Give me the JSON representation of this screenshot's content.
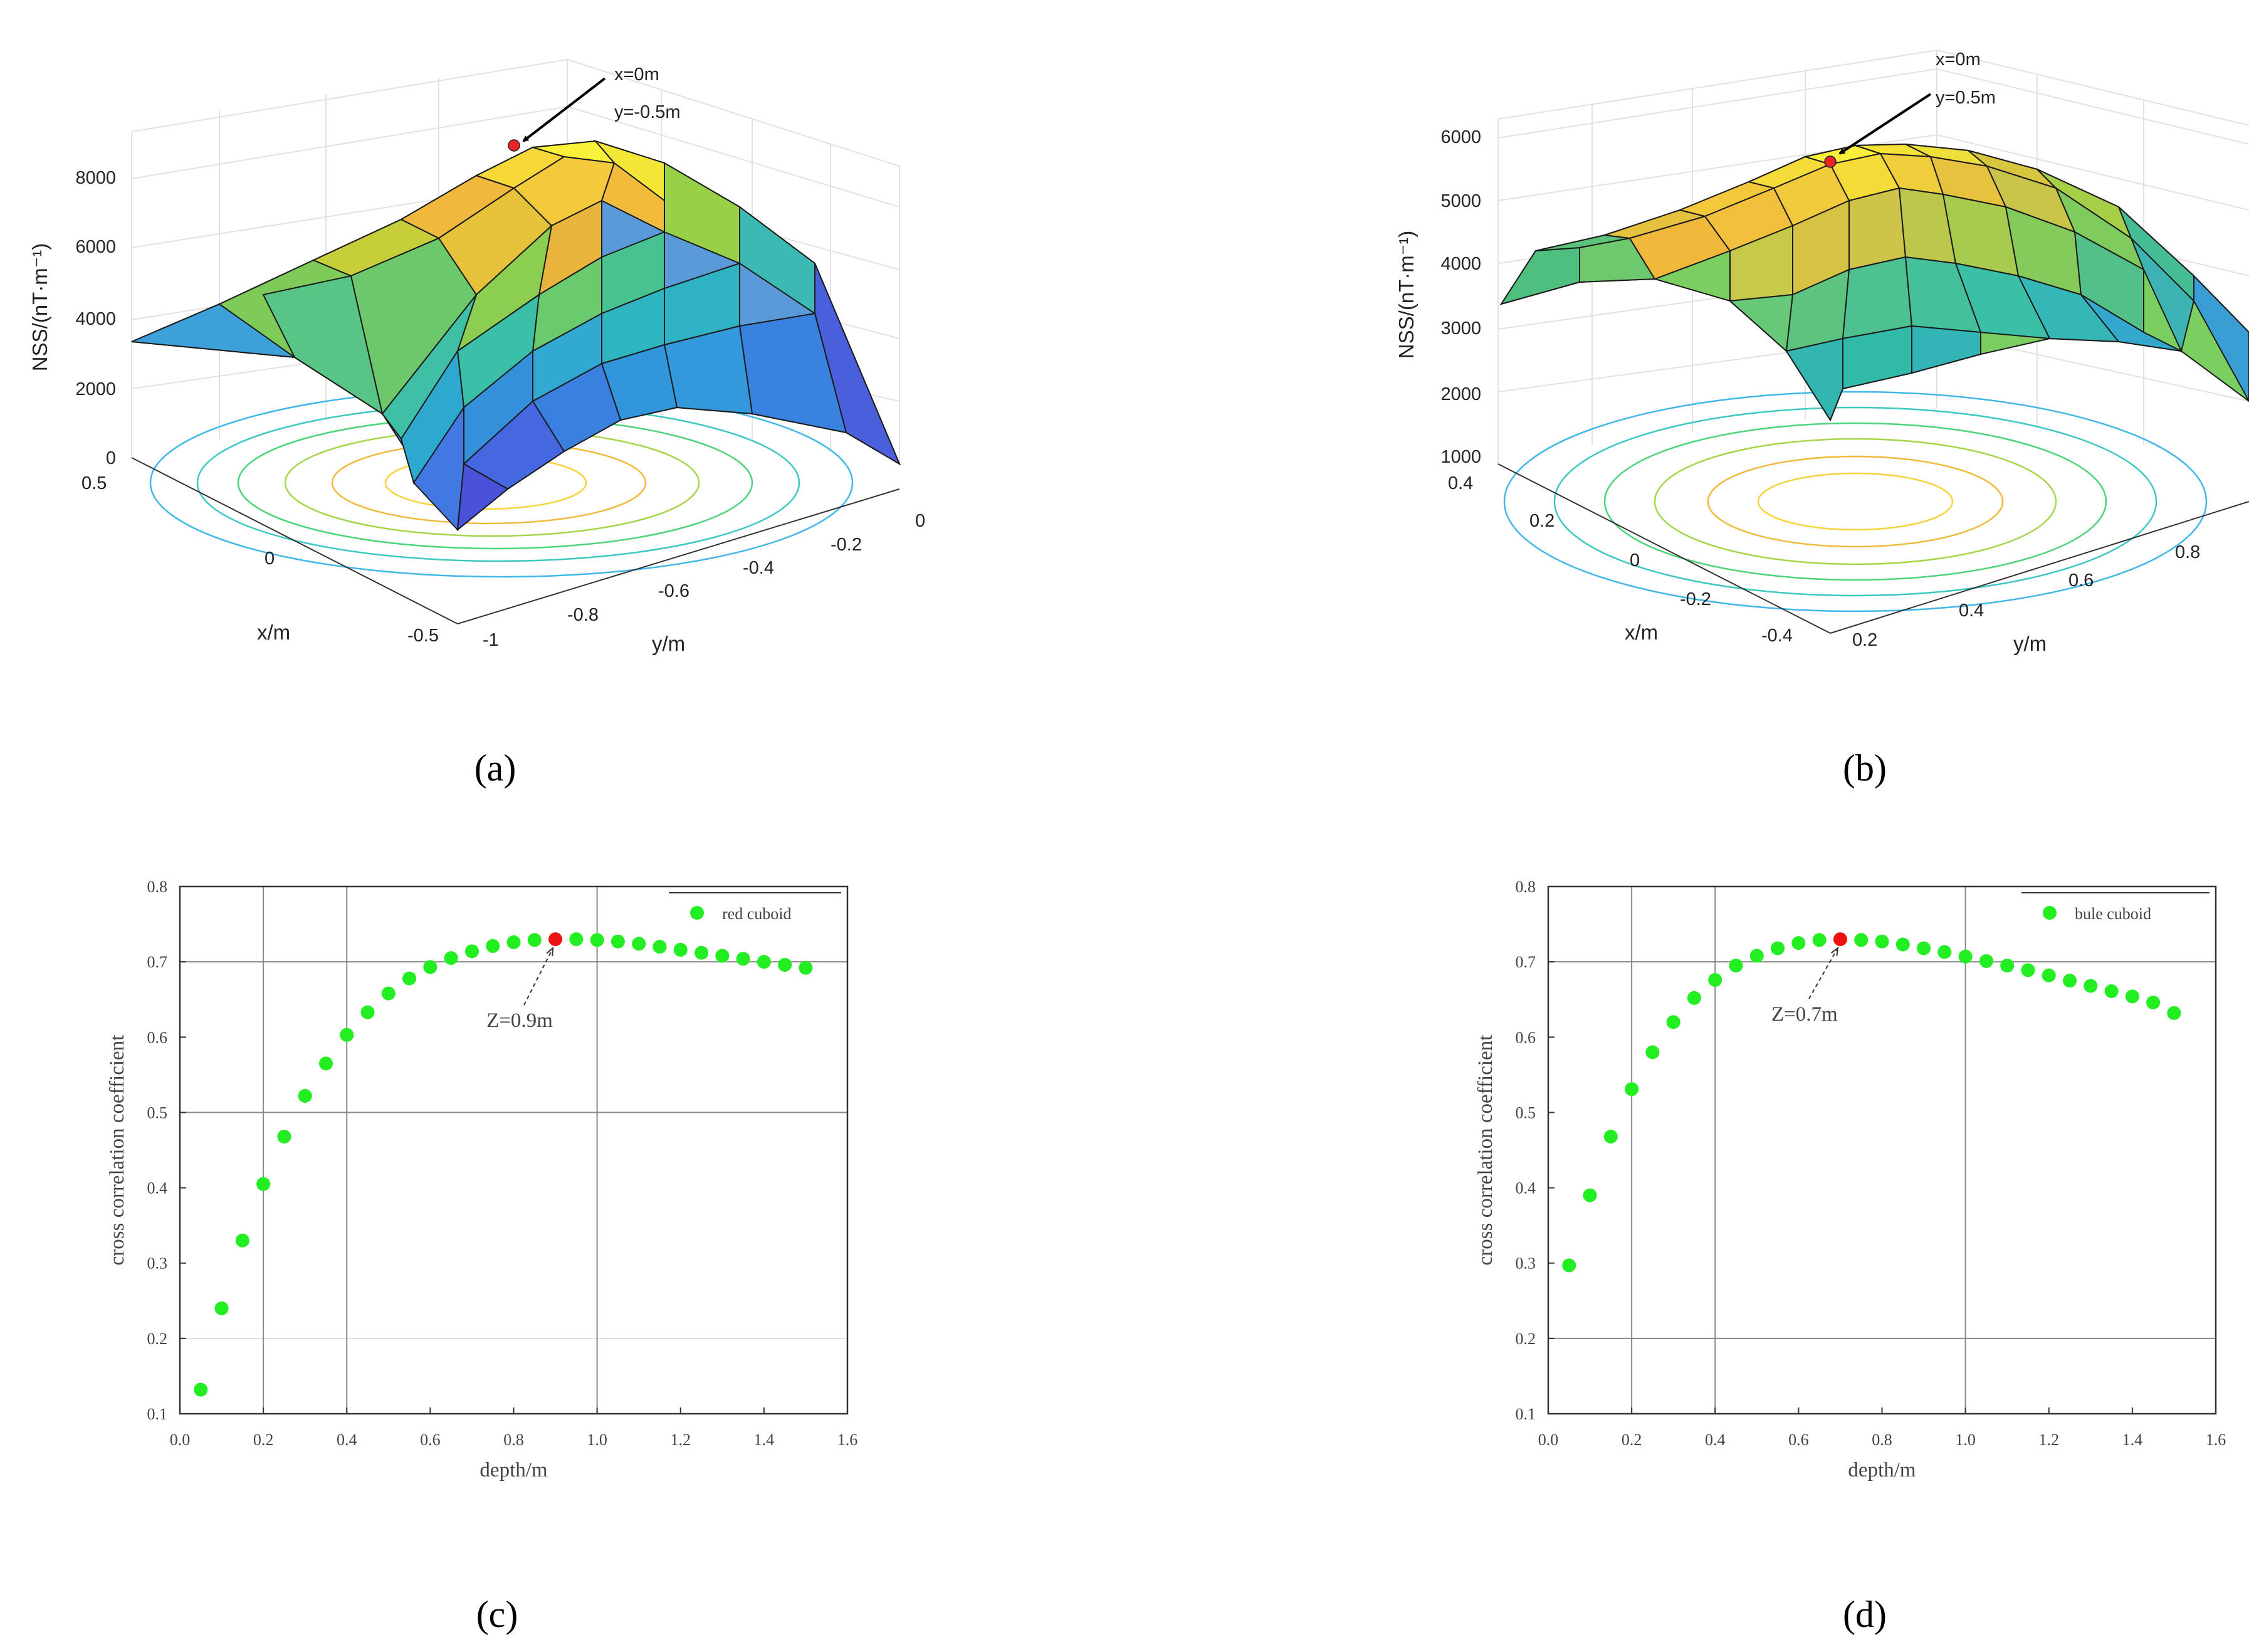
{
  "figure": {
    "panel_labels": {
      "a": "(a)",
      "b": "(b)",
      "c": "(c)",
      "d": "(d)"
    }
  },
  "chart_data": [
    {
      "id": "a",
      "type": "surface3d",
      "zlabel": "NSS/(nT·m⁻¹)",
      "xlabel": "x/m",
      "ylabel": "y/m",
      "ztick_labels": [
        "0",
        "2000",
        "4000",
        "6000",
        "8000"
      ],
      "xtick_labels": [
        "0.5",
        "0",
        "-0.5"
      ],
      "ytick_labels": [
        "-1",
        "-0.8",
        "-0.6",
        "-0.4",
        "-0.2",
        "0"
      ],
      "xlim": [
        -0.5,
        0.5
      ],
      "ylim": [
        -1,
        0
      ],
      "zlim": [
        0,
        9000
      ],
      "peak": {
        "x": 0,
        "y": -0.5,
        "z": 8800
      },
      "annotation": [
        "x=0m",
        "y=-0.5m"
      ],
      "colormap": "parula"
    },
    {
      "id": "b",
      "type": "surface3d",
      "zlabel": "NSS/(nT·m⁻¹)",
      "xlabel": "x/m",
      "ylabel": "y/m",
      "ztick_labels": [
        "1000",
        "2000",
        "3000",
        "4000",
        "5000",
        "6000"
      ],
      "xtick_labels": [
        "0.4",
        "0.2",
        "0",
        "-0.2",
        "-0.4"
      ],
      "ytick_labels": [
        "0.2",
        "0.4",
        "0.6",
        "0.8"
      ],
      "xlim": [
        -0.4,
        0.4
      ],
      "ylim": [
        0.2,
        0.9
      ],
      "zlim": [
        1000,
        6000
      ],
      "peak": {
        "x": 0,
        "y": 0.5,
        "z": 5700
      },
      "annotation": [
        "x=0m",
        "y=0.5m"
      ],
      "colormap": "parula"
    },
    {
      "id": "c",
      "type": "scatter",
      "xlabel": "depth/m",
      "ylabel": "cross correlation coefficient",
      "xlim": [
        0,
        1.6
      ],
      "ylim": [
        0.1,
        0.8
      ],
      "xtick_labels": [
        "0.0",
        "0.2",
        "0.4",
        "0.6",
        "0.8",
        "1.0",
        "1.2",
        "1.4",
        "1.6"
      ],
      "ytick_labels": [
        "0.1",
        "0.2",
        "0.3",
        "0.4",
        "0.5",
        "0.6",
        "0.7",
        "0.8"
      ],
      "legend": "red cuboid",
      "legend_position": "top-right",
      "marker_color": "#22ee22",
      "highlight_color": "#ee1111",
      "x": [
        0.05,
        0.1,
        0.15,
        0.2,
        0.25,
        0.3,
        0.35,
        0.4,
        0.45,
        0.5,
        0.55,
        0.6,
        0.65,
        0.7,
        0.75,
        0.8,
        0.85,
        0.9,
        0.95,
        1.0,
        1.05,
        1.1,
        1.15,
        1.2,
        1.25,
        1.3,
        1.35,
        1.4,
        1.45,
        1.5
      ],
      "y": [
        0.132,
        0.24,
        0.33,
        0.405,
        0.468,
        0.522,
        0.565,
        0.603,
        0.633,
        0.658,
        0.678,
        0.693,
        0.705,
        0.714,
        0.721,
        0.726,
        0.729,
        0.73,
        0.73,
        0.729,
        0.727,
        0.724,
        0.72,
        0.716,
        0.712,
        0.708,
        0.704,
        0.7,
        0.696,
        0.692
      ],
      "highlight": {
        "x": 0.9,
        "y": 0.73
      },
      "annotation": "Z=0.9m"
    },
    {
      "id": "d",
      "type": "scatter",
      "xlabel": "depth/m",
      "ylabel": "cross correlation coefficient",
      "xlim": [
        0,
        1.6
      ],
      "ylim": [
        0.1,
        0.8
      ],
      "xtick_labels": [
        "0.0",
        "0.2",
        "0.4",
        "0.6",
        "0.8",
        "1.0",
        "1.2",
        "1.4",
        "1.6"
      ],
      "ytick_labels": [
        "0.1",
        "0.2",
        "0.3",
        "0.4",
        "0.5",
        "0.6",
        "0.7",
        "0.8"
      ],
      "legend": "bule cuboid",
      "legend_position": "top-right",
      "marker_color": "#22ee22",
      "highlight_color": "#ee1111",
      "x": [
        0.05,
        0.1,
        0.15,
        0.2,
        0.25,
        0.3,
        0.35,
        0.4,
        0.45,
        0.5,
        0.55,
        0.6,
        0.65,
        0.7,
        0.75,
        0.8,
        0.85,
        0.9,
        0.95,
        1.0,
        1.05,
        1.1,
        1.15,
        1.2,
        1.25,
        1.3,
        1.35,
        1.4,
        1.45,
        1.5
      ],
      "y": [
        0.297,
        0.39,
        0.468,
        0.531,
        0.58,
        0.62,
        0.652,
        0.676,
        0.695,
        0.708,
        0.718,
        0.725,
        0.729,
        0.73,
        0.729,
        0.727,
        0.723,
        0.718,
        0.713,
        0.707,
        0.701,
        0.695,
        0.689,
        0.682,
        0.675,
        0.668,
        0.661,
        0.654,
        0.646,
        0.632
      ],
      "highlight": {
        "x": 0.7,
        "y": 0.73
      },
      "annotation": "Z=0.7m"
    }
  ]
}
